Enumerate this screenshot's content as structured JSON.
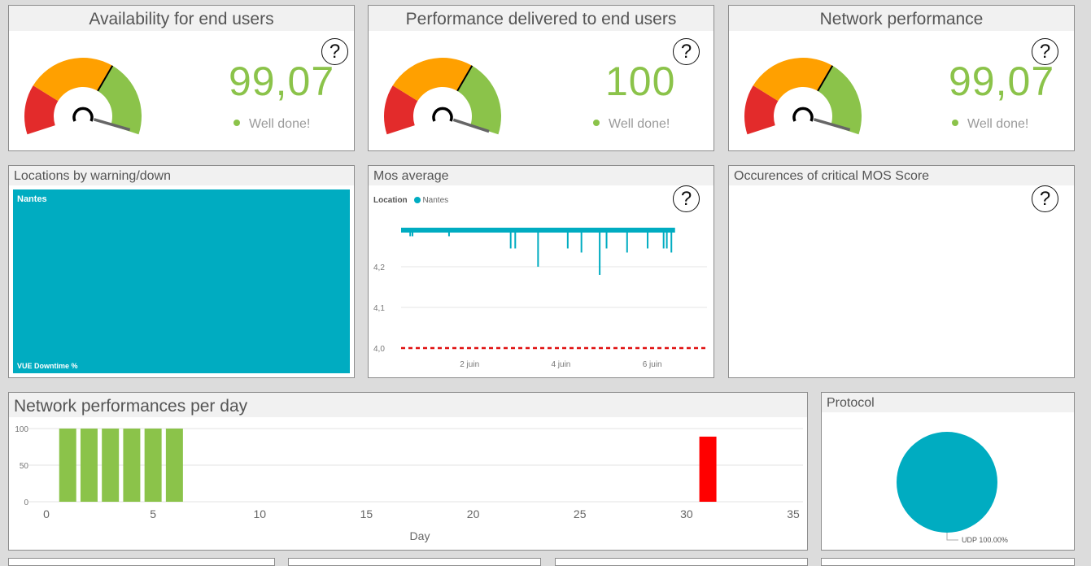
{
  "kpis": [
    {
      "title": "Availability for end users",
      "value": "99,07",
      "status": "Well done!",
      "needle_pct": 99.07
    },
    {
      "title": "Performance delivered to end users",
      "value": "100",
      "status": "Well done!",
      "needle_pct": 100
    },
    {
      "title": "Network performance",
      "value": "99,07",
      "status": "Well done!",
      "needle_pct": 99.07
    }
  ],
  "help_glyph": "?",
  "colors": {
    "good": "#8bc34a",
    "warn": "#ffa000",
    "bad": "#e32b2b",
    "teal": "#00acc1",
    "threshold": "#e01010"
  },
  "locations": {
    "title": "Locations by warning/down",
    "tile_label": "Nantes",
    "footer_label": "VUE Downtime %"
  },
  "mos": {
    "title": "Mos average",
    "legend_title": "Location",
    "legend_item": "Nantes",
    "y_ticks": [
      "4,2",
      "4,1",
      "4,0"
    ],
    "x_ticks": [
      "2 juin",
      "4 juin",
      "6 juin"
    ]
  },
  "critical_mos": {
    "title": "Occurences of critical MOS Score"
  },
  "network_per_day": {
    "title": "Network performances per day"
  },
  "protocol": {
    "title": "Protocol",
    "slice_label": "UDP 100.00%"
  },
  "chart_data": [
    {
      "type": "line",
      "title": "Mos average",
      "series": [
        {
          "name": "Nantes",
          "baseline": 4.29
        }
      ],
      "dips": [
        {
          "x": 0.2,
          "y": 4.275
        },
        {
          "x": 0.25,
          "y": 4.275
        },
        {
          "x": 1.05,
          "y": 4.275
        },
        {
          "x": 2.4,
          "y": 4.245
        },
        {
          "x": 2.5,
          "y": 4.245
        },
        {
          "x": 3.0,
          "y": 4.2
        },
        {
          "x": 3.65,
          "y": 4.245
        },
        {
          "x": 3.95,
          "y": 4.235
        },
        {
          "x": 4.35,
          "y": 4.18
        },
        {
          "x": 4.5,
          "y": 4.245
        },
        {
          "x": 4.95,
          "y": 4.235
        },
        {
          "x": 5.4,
          "y": 4.245
        },
        {
          "x": 5.75,
          "y": 4.245
        },
        {
          "x": 5.82,
          "y": 4.245
        },
        {
          "x": 5.92,
          "y": 4.235
        }
      ],
      "threshold": 4.0,
      "x_ticks": [
        "2 juin",
        "4 juin",
        "6 juin"
      ],
      "y_ticks": [
        4.2,
        4.1,
        4.0
      ],
      "legend": "top-left",
      "grid": true
    },
    {
      "type": "bar",
      "title": "Network performances per day",
      "xlabel": "Day",
      "x": [
        1,
        2,
        3,
        4,
        5,
        6,
        31
      ],
      "values": [
        100,
        100,
        100,
        100,
        100,
        100,
        89
      ],
      "bar_colors": [
        "#8bc34a",
        "#8bc34a",
        "#8bc34a",
        "#8bc34a",
        "#8bc34a",
        "#8bc34a",
        "#ff0000"
      ],
      "xlim": [
        0,
        35
      ],
      "ylim": [
        0,
        100
      ],
      "x_ticks": [
        0,
        5,
        10,
        15,
        20,
        25,
        30,
        35
      ],
      "y_ticks": [
        100,
        50,
        0
      ],
      "grid": true
    },
    {
      "type": "pie",
      "title": "Protocol",
      "categories": [
        "UDP"
      ],
      "values": [
        100.0
      ],
      "labels": [
        "UDP 100.00%"
      ]
    }
  ]
}
